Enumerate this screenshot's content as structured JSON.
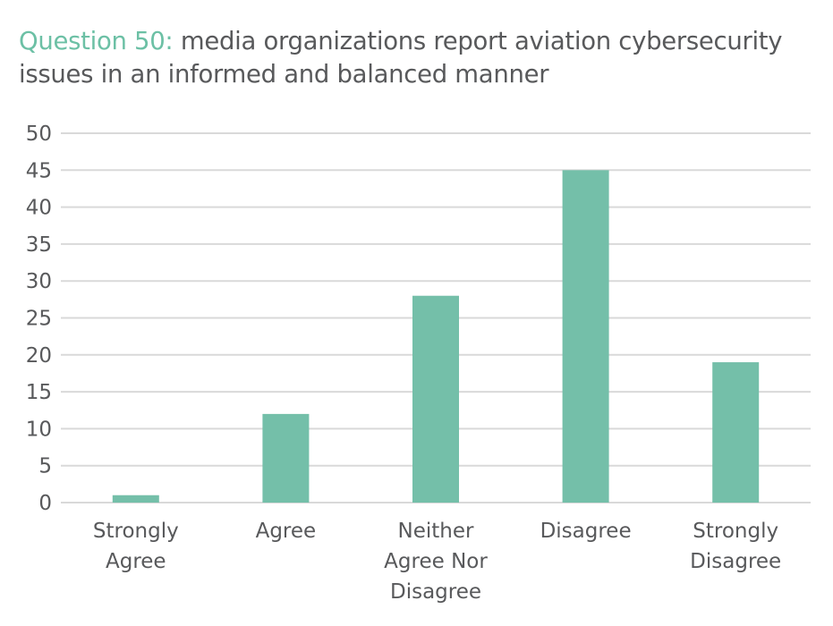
{
  "chart_data": {
    "type": "bar",
    "title_prefix": "Question 50:",
    "title": "media organizations report aviation cybersecurity issues in an informed and balanced manner",
    "categories": [
      [
        "Strongly",
        "Agree"
      ],
      [
        "Agree"
      ],
      [
        "Neither",
        "Agree Nor",
        "Disagree"
      ],
      [
        "Disagree"
      ],
      [
        "Strongly",
        "Disagree"
      ]
    ],
    "values": [
      1,
      12,
      28,
      45,
      19
    ],
    "xlabel": "",
    "ylabel": "",
    "ylim": [
      0,
      50
    ],
    "yticks": [
      0,
      5,
      10,
      15,
      20,
      25,
      30,
      35,
      40,
      45,
      50
    ],
    "grid": true,
    "colors": {
      "bar": "#74bfa9",
      "title_highlight": "#6cc0a5",
      "grid": "#d9d9d9",
      "text": "#58595b"
    }
  }
}
